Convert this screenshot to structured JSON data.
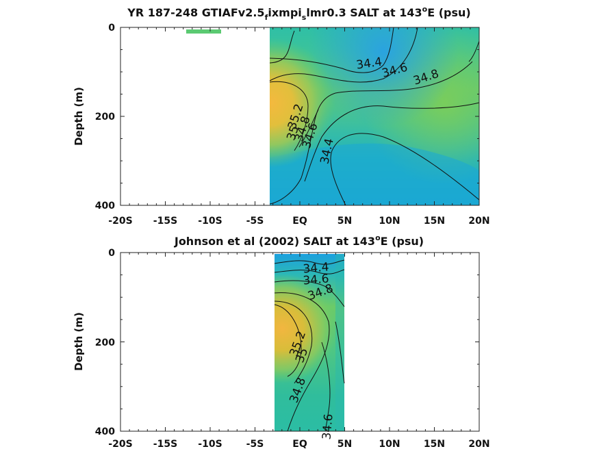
{
  "chart_data": [
    {
      "type": "heatmap",
      "title_parts": {
        "t1": "YR 187-248 GTIAFv2.5",
        "t2": "f",
        "t3": "ixmpi",
        "t4": "s",
        "t5": "lmr0.3 SALT at 143",
        "t6": "o",
        "t7": "E (psu)"
      },
      "ylabel": "Depth (m)",
      "xlim": [
        -20,
        20
      ],
      "ylim": [
        400,
        0
      ],
      "xticks": [
        "-20S",
        "-15S",
        "-10S",
        "-5S",
        "EQ",
        "5N",
        "10N",
        "15N",
        "20N"
      ],
      "yticks": [
        "0",
        "200",
        "400"
      ],
      "data_extent_lat": [
        -2.7,
        20
      ],
      "isohalines": [
        34.4,
        34.6,
        34.8,
        35,
        35.2
      ],
      "contour_labels": [
        "34.4",
        "34.6",
        "34.8",
        "35.2",
        "35",
        "34.8",
        "34.6",
        "34.4"
      ]
    },
    {
      "type": "heatmap",
      "title_parts": {
        "t1": "Johnson et al (2002) SALT at 143",
        "t2": "o",
        "t3": "E (psu)"
      },
      "ylabel": "Depth (m)",
      "xlim": [
        -20,
        20
      ],
      "ylim": [
        400,
        0
      ],
      "xticks": [
        "-20S",
        "-15S",
        "-10S",
        "-5S",
        "EQ",
        "5N",
        "10N",
        "15N",
        "20N"
      ],
      "yticks": [
        "0",
        "200",
        "400"
      ],
      "data_extent_lat": [
        -2.2,
        5.5
      ],
      "isohalines": [
        34.4,
        34.6,
        34.8,
        35,
        35.2
      ],
      "contour_labels": [
        "34.4",
        "34.6",
        "34.8",
        "35.2",
        "35",
        "34.8",
        "34.6"
      ]
    }
  ],
  "colors": {
    "fresh": "#1ea8d8",
    "mid": "#22b9b8",
    "green": "#5ec96e",
    "yellow": "#c9c93a",
    "salty": "#f2b640"
  }
}
